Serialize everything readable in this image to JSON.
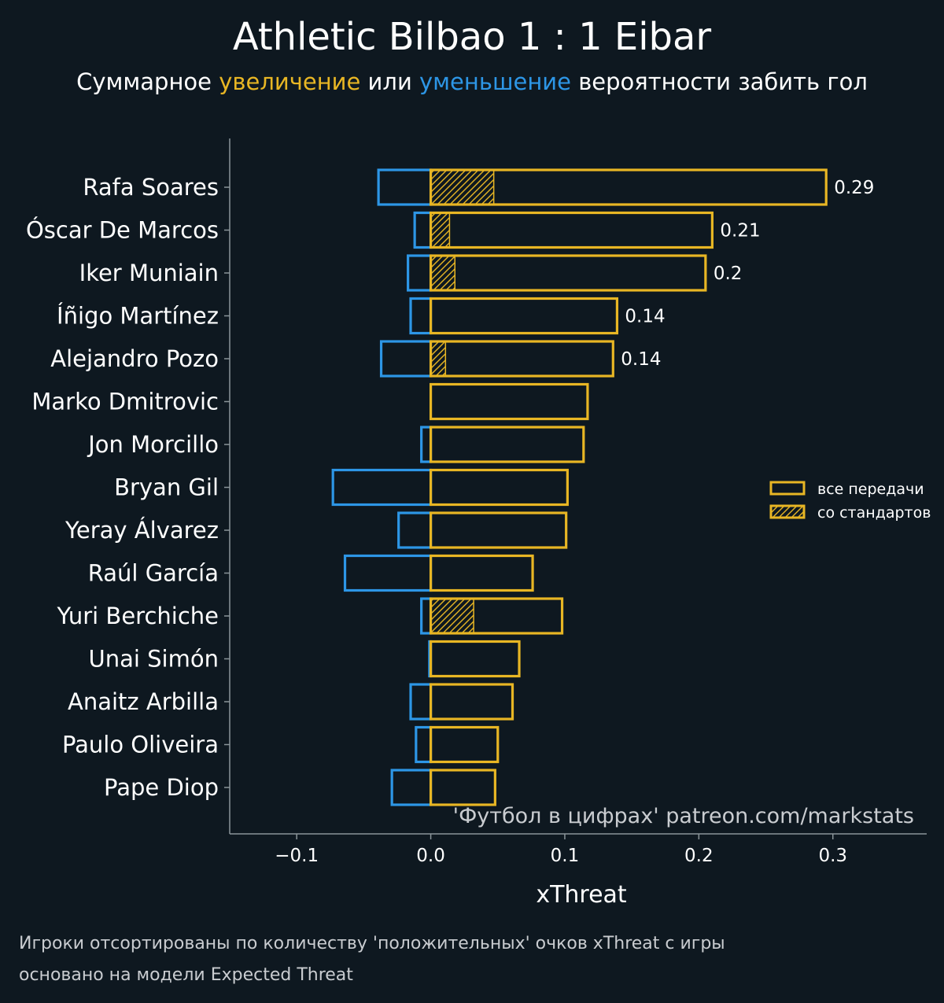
{
  "header": {
    "title": "Athletic Bilbao 1 : 1 Eibar",
    "subtitle": {
      "prefix": "Суммарное ",
      "positive_word": "увеличение",
      "middle": " или ",
      "negative_word": "уменьшение",
      "suffix": " вероятности забить гол"
    }
  },
  "footer": {
    "line1": "Игроки отсортированы по количеству 'положительных' очков xThreat с игры",
    "line2": "основано на модели Expected Threat"
  },
  "colors": {
    "background": "#0e1820",
    "positive": "#e8b624",
    "negative": "#2d96e6",
    "axis": "#8a9499",
    "text": "#ffffff",
    "watermark": "#c9ccd0"
  },
  "chart_data": {
    "type": "bar",
    "orientation": "horizontal",
    "xlabel": "xThreat",
    "xlim": [
      -0.15,
      0.37
    ],
    "xticks": [
      -0.1,
      0.0,
      0.1,
      0.2,
      0.3
    ],
    "xtick_labels": [
      "−0.1",
      "0.0",
      "0.1",
      "0.2",
      "0.3"
    ],
    "watermark": "'Футбол в цифрах' patreon.com/markstats",
    "legend": {
      "placement": "right",
      "entries": [
        {
          "label": "все передачи",
          "style": "outline"
        },
        {
          "label": "со стандартов",
          "style": "hatched"
        }
      ]
    },
    "categories": [
      "Rafa Soares",
      "Óscar De Marcos",
      "Iker Muniain",
      "Íñigo Martínez",
      "Alejandro Pozo",
      "Marko Dmitrovic",
      "Jon Morcillo",
      "Bryan Gil",
      "Yeray Álvarez",
      "Raúl García",
      "Yuri Berchiche",
      "Unai Simón",
      "Anaitz Arbilla",
      "Paulo Oliveira",
      "Pape Diop"
    ],
    "series": [
      {
        "name": "все передачи",
        "positive": [
          0.295,
          0.21,
          0.205,
          0.139,
          0.136,
          0.117,
          0.114,
          0.102,
          0.101,
          0.076,
          0.098,
          0.066,
          0.061,
          0.05,
          0.048
        ],
        "negative": [
          -0.039,
          -0.012,
          -0.017,
          -0.015,
          -0.037,
          0.0,
          -0.007,
          -0.073,
          -0.024,
          -0.064,
          -0.007,
          -0.001,
          -0.015,
          -0.011,
          -0.029
        ]
      },
      {
        "name": "со стандартов",
        "positive": [
          0.047,
          0.014,
          0.018,
          0.0,
          0.011,
          0.0,
          0.0,
          0.0,
          0.0,
          0.0,
          0.032,
          0.0,
          0.0,
          0.0,
          0.0
        ]
      }
    ],
    "data_labels": [
      "0.29",
      "0.21",
      "0.2",
      "0.14",
      "0.14",
      "",
      "",
      "",
      "",
      "",
      "",
      "",
      "",
      "",
      ""
    ]
  }
}
